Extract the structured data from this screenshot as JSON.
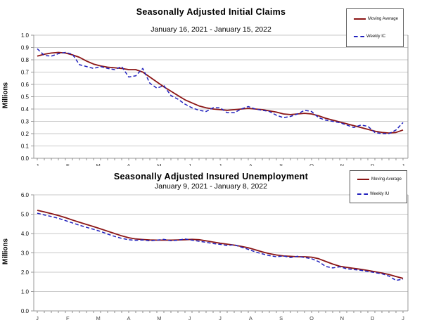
{
  "colors": {
    "moving_average": "#8b1515",
    "weekly": "#2121bd",
    "grid": "#c9c9c9",
    "axis": "#9a9a9a",
    "tick": "#8c8c8c",
    "month_label": "#444444",
    "y_label_text": "#111111"
  },
  "charts": [
    {
      "title": "Seasonally Adjusted Initial Claims",
      "subtitle": "January 16, 2021 - January 15, 2022",
      "ylabel": "Millions",
      "chart_data": {
        "type": "line",
        "title": "Seasonally Adjusted Initial Claims",
        "subtitle": "January 16, 2021 - January 15, 2022",
        "xlabel": "",
        "ylabel": "Millions",
        "ylim": [
          0,
          1.0
        ],
        "ytick_step": 0.1,
        "grid": true,
        "legend_position": "top-right",
        "y_tick_labels": [
          "0.0",
          "0.1",
          "0.2",
          "0.3",
          "0.4",
          "0.5",
          "0.6",
          "0.7",
          "0.8",
          "0.9",
          "1.0"
        ],
        "x_tick_labels": [
          "J",
          "F",
          "M",
          "A",
          "M",
          "J",
          "J",
          "A",
          "S",
          "O",
          "N",
          "D",
          "J"
        ],
        "series": [
          {
            "name": "Moving Average",
            "style": "solid",
            "color": "#8b1515",
            "values": [
              0.83,
              0.845,
              0.855,
              0.86,
              0.855,
              0.84,
              0.82,
              0.79,
              0.765,
              0.75,
              0.74,
              0.735,
              0.73,
              0.72,
              0.72,
              0.7,
              0.66,
              0.62,
              0.58,
              0.545,
              0.51,
              0.475,
              0.45,
              0.425,
              0.41,
              0.4,
              0.395,
              0.39,
              0.395,
              0.4,
              0.405,
              0.4,
              0.395,
              0.385,
              0.375,
              0.36,
              0.355,
              0.36,
              0.365,
              0.36,
              0.345,
              0.325,
              0.31,
              0.295,
              0.28,
              0.265,
              0.25,
              0.235,
              0.22,
              0.21,
              0.205,
              0.21,
              0.23
            ]
          },
          {
            "name": "Weekly IC",
            "style": "dashed",
            "color": "#2121bd",
            "values": [
              0.89,
              0.835,
              0.83,
              0.85,
              0.86,
              0.845,
              0.76,
              0.745,
              0.73,
              0.745,
              0.73,
              0.72,
              0.745,
              0.66,
              0.67,
              0.73,
              0.61,
              0.57,
              0.59,
              0.51,
              0.48,
              0.44,
              0.41,
              0.39,
              0.38,
              0.41,
              0.41,
              0.37,
              0.37,
              0.4,
              0.42,
              0.4,
              0.39,
              0.38,
              0.35,
              0.33,
              0.34,
              0.36,
              0.39,
              0.38,
              0.33,
              0.31,
              0.3,
              0.29,
              0.27,
              0.25,
              0.27,
              0.26,
              0.21,
              0.2,
              0.2,
              0.23,
              0.29
            ]
          }
        ]
      }
    },
    {
      "title": "Seasonally Adjusted Insured Unemployment",
      "subtitle": "January 9, 2021 - January 8, 2022",
      "ylabel": "Millions",
      "chart_data": {
        "type": "line",
        "title": "Seasonally Adjusted Insured Unemployment",
        "subtitle": "January 9, 2021 - January 8, 2022",
        "xlabel": "",
        "ylabel": "Millions",
        "ylim": [
          0,
          6.0
        ],
        "ytick_step": 1.0,
        "grid": true,
        "legend_position": "top-right",
        "y_tick_labels": [
          "0.0",
          "1.0",
          "2.0",
          "3.0",
          "4.0",
          "5.0",
          "6.0"
        ],
        "x_tick_labels": [
          "J",
          "F",
          "M",
          "A",
          "M",
          "J",
          "J",
          "A",
          "S",
          "O",
          "N",
          "D",
          "J"
        ],
        "series": [
          {
            "name": "Moving Average",
            "style": "solid",
            "color": "#8b1515",
            "values": [
              5.2,
              5.12,
              5.03,
              4.93,
              4.82,
              4.7,
              4.58,
              4.47,
              4.36,
              4.24,
              4.12,
              4.0,
              3.88,
              3.78,
              3.72,
              3.69,
              3.67,
              3.66,
              3.66,
              3.66,
              3.67,
              3.68,
              3.7,
              3.68,
              3.62,
              3.56,
              3.5,
              3.45,
              3.4,
              3.34,
              3.26,
              3.16,
              3.05,
              2.96,
              2.89,
              2.84,
              2.82,
              2.8,
              2.8,
              2.78,
              2.7,
              2.56,
              2.42,
              2.31,
              2.25,
              2.2,
              2.15,
              2.09,
              2.03,
              1.96,
              1.88,
              1.78,
              1.68
            ]
          },
          {
            "name": "Weekly IU",
            "style": "dashed",
            "color": "#2121bd",
            "values": [
              5.05,
              4.96,
              4.88,
              4.79,
              4.67,
              4.55,
              4.43,
              4.32,
              4.22,
              4.11,
              3.97,
              3.85,
              3.75,
              3.68,
              3.65,
              3.67,
              3.62,
              3.66,
              3.7,
              3.63,
              3.66,
              3.72,
              3.66,
              3.6,
              3.55,
              3.48,
              3.44,
              3.38,
              3.42,
              3.3,
              3.18,
              3.05,
              2.95,
              2.86,
              2.8,
              2.84,
              2.76,
              2.82,
              2.76,
              2.7,
              2.55,
              2.3,
              2.22,
              2.28,
              2.18,
              2.14,
              2.1,
              2.04,
              1.98,
              1.92,
              1.8,
              1.58,
              1.64
            ]
          }
        ]
      }
    }
  ]
}
